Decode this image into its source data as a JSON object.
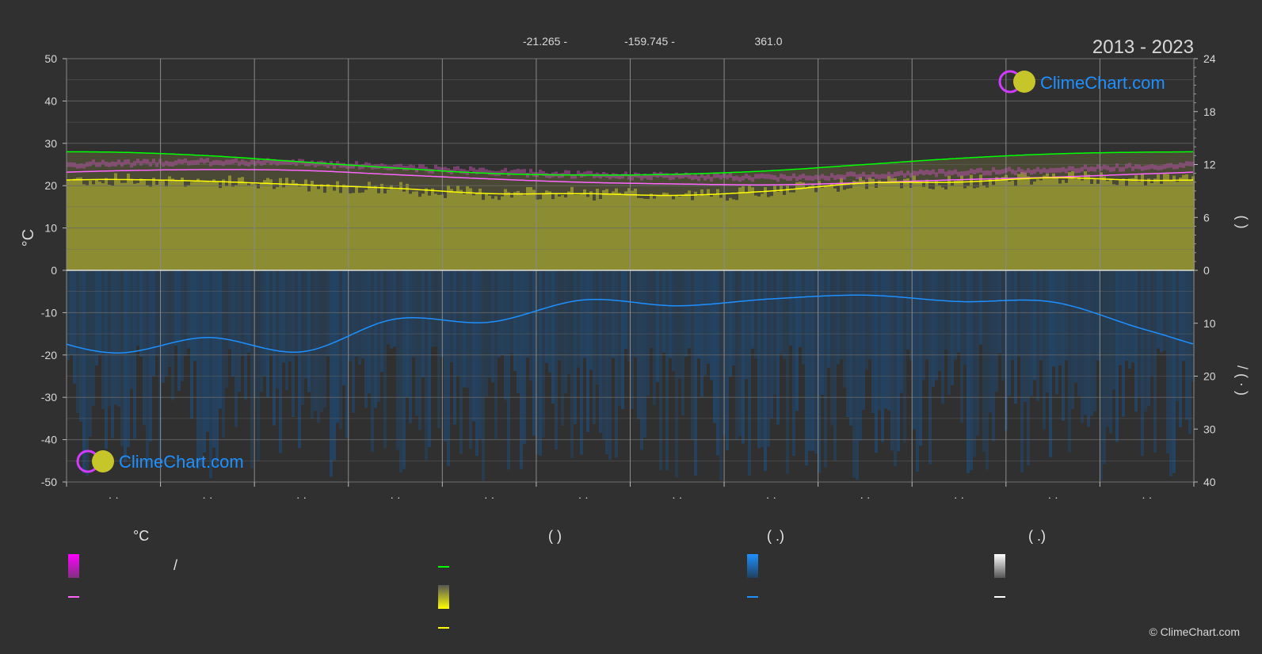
{
  "header": {
    "lat": "-21.265 -",
    "lon": "-159.745 -",
    "elev": "361.0",
    "years": "2013 - 2023"
  },
  "axes": {
    "left_label": "°C",
    "right_upper_label": "(   )",
    "right_lower_label": "/  (  ·  )"
  },
  "legend": {
    "col1_title": "°C",
    "col1_item1": "/",
    "col2_title": "(            )",
    "col3_title": "(    .)",
    "col4_title": "(    .)"
  },
  "logo": {
    "text": "ClimeChart.com"
  },
  "copyright": "© ClimeChart.com",
  "colors": {
    "background": "#303030",
    "grid": "#6a6a6a",
    "daylight": "#00ff00",
    "sunshine": "#ffff00",
    "temp_mean": "#ff66ff",
    "precip": "#1e90ff",
    "sun_band": "#9c9c32",
    "rain_band": "#1e4c7a"
  },
  "chart_data": {
    "type": "line",
    "x_months": [
      1,
      2,
      3,
      4,
      5,
      6,
      7,
      8,
      9,
      10,
      11,
      12
    ],
    "x_tick_labels": [
      "· ·",
      "· ·",
      "· ·",
      "· ·",
      "· ·",
      "· ·",
      "· ·",
      "· ·",
      "· ·",
      "· ·",
      "· ·",
      "· ·"
    ],
    "ylim_left": [
      -50,
      50
    ],
    "yticks_left": [
      50,
      40,
      30,
      20,
      10,
      0,
      -10,
      -20,
      -30,
      -40,
      -50
    ],
    "ylim_right_upper": [
      0,
      24
    ],
    "yticks_right_upper": [
      24,
      18,
      12,
      6,
      0
    ],
    "ylim_right_lower": [
      0,
      40
    ],
    "yticks_right_lower": [
      0,
      10,
      20,
      30,
      40
    ],
    "series": [
      {
        "key": "daylight_hours",
        "values": [
          13.4,
          13.0,
          12.3,
          11.6,
          11.0,
          10.8,
          10.9,
          11.3,
          12.0,
          12.7,
          13.2,
          13.4
        ]
      },
      {
        "key": "sunshine_hours",
        "values": [
          10.3,
          10.1,
          9.7,
          9.3,
          8.7,
          8.7,
          8.5,
          9.0,
          9.9,
          10.0,
          10.5,
          10.2
        ]
      },
      {
        "key": "temperature_mean_c",
        "values": [
          23.5,
          23.8,
          23.6,
          22.6,
          21.6,
          20.8,
          20.4,
          20.2,
          20.7,
          21.4,
          22.0,
          22.8
        ]
      },
      {
        "key": "precipitation_mm_per_day",
        "values": [
          15.6,
          12.7,
          15.4,
          9.2,
          9.8,
          5.6,
          6.7,
          5.4,
          4.7,
          5.9,
          6.0,
          11.3
        ]
      }
    ],
    "grid": true,
    "legend": "bottom"
  }
}
